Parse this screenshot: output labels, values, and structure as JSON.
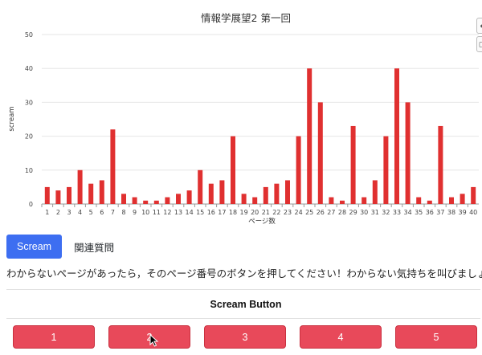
{
  "chart_data": {
    "type": "bar",
    "title": "情報学展望2 第一回",
    "xlabel": "ページ数",
    "ylabel": "scream",
    "ylim": [
      0,
      50
    ],
    "yticks": [
      0,
      10,
      20,
      30,
      40,
      50
    ],
    "grid": true,
    "bar_color": "#e03030",
    "categories": [
      "1",
      "2",
      "3",
      "4",
      "5",
      "6",
      "7",
      "8",
      "9",
      "10",
      "11",
      "12",
      "13",
      "14",
      "15",
      "16",
      "17",
      "18",
      "19",
      "20",
      "21",
      "22",
      "23",
      "24",
      "25",
      "26",
      "27",
      "28",
      "29",
      "30",
      "31",
      "32",
      "33",
      "34",
      "35",
      "36",
      "37",
      "38",
      "39",
      "40"
    ],
    "values": [
      5,
      4,
      5,
      10,
      6,
      7,
      22,
      3,
      2,
      1,
      1,
      2,
      3,
      4,
      10,
      6,
      7,
      20,
      3,
      2,
      5,
      6,
      7,
      20,
      40,
      30,
      2,
      1,
      23,
      2,
      7,
      20,
      40,
      30,
      2,
      1,
      23,
      2,
      3,
      5
    ]
  },
  "tabs": [
    {
      "label": "Scream",
      "active": true
    },
    {
      "label": "関連質問",
      "active": false
    }
  ],
  "instruction": "わからないページがあったら，そのページ番号のボタンを押してください！わからない気持ちを叫びましょう",
  "button_section": {
    "title": "Scream Button",
    "buttons": [
      "1",
      "2",
      "3",
      "4",
      "5"
    ]
  },
  "colors": {
    "accent": "#3d6ef1",
    "scream_button": "#e8495a",
    "bar": "#e03030"
  }
}
